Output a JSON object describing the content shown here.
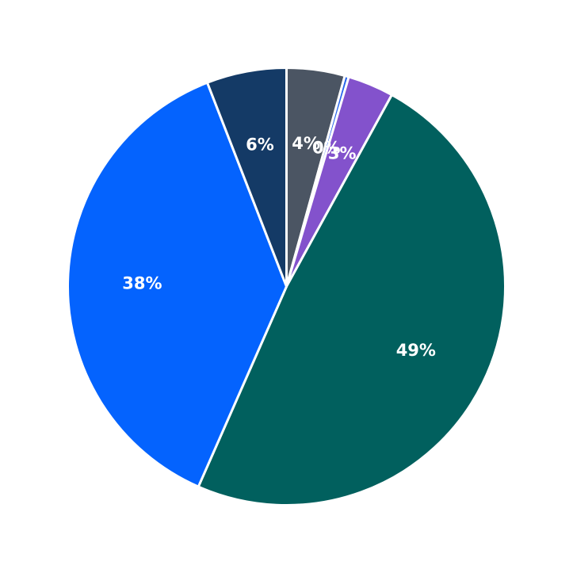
{
  "chart_data": {
    "type": "pie",
    "title": "",
    "start_angle_deg": 90,
    "direction": "clockwise",
    "slices": [
      {
        "label": "4%",
        "value": 4.3,
        "color": "#4B5563"
      },
      {
        "label": "0%",
        "value": 0.3,
        "color": "#2563EB"
      },
      {
        "label": "3%",
        "value": 3.4,
        "color": "#8352CC"
      },
      {
        "label": "49%",
        "value": 48.6,
        "color": "#01605E"
      },
      {
        "label": "38%",
        "value": 37.5,
        "color": "#0463FE"
      },
      {
        "label": "6%",
        "value": 5.9,
        "color": "#143A66"
      }
    ]
  }
}
